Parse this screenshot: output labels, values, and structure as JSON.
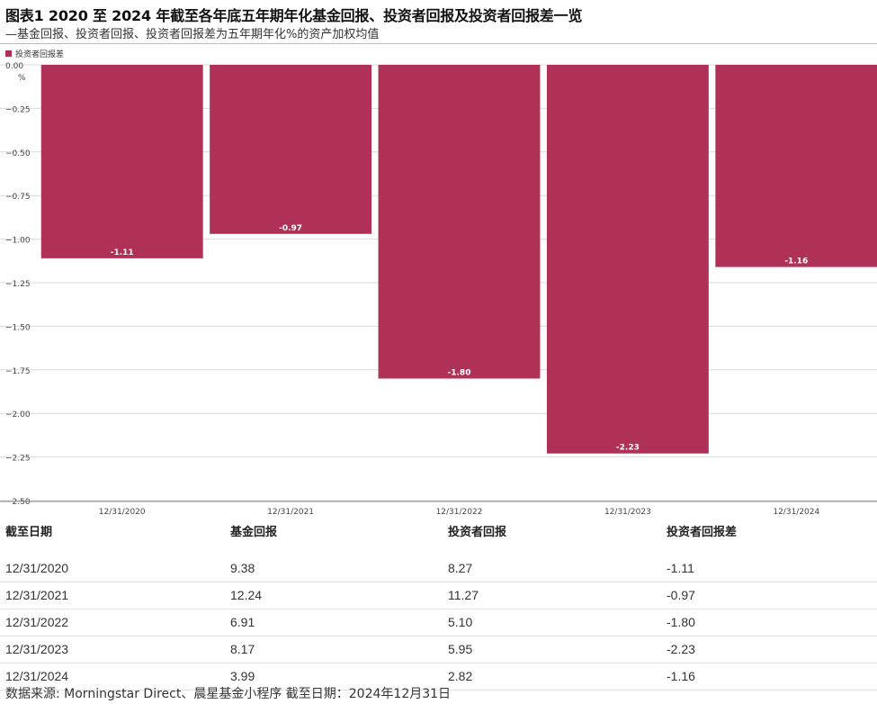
{
  "title": "图表1 2020 至 2024 年截至各年底五年期年化基金回报、投资者回报及投资者回报差一览",
  "subtitle": "—基金回报、投资者回报、投资者回报差为五年期年化%的资产加权均值",
  "legend": {
    "label": "投资者回报差",
    "color": "#b03156"
  },
  "colors": {
    "bar": "#b03156",
    "grid": "#d9d9d9",
    "axis": "#888888"
  },
  "chart_data": {
    "type": "bar",
    "categories": [
      "12/31/2020",
      "12/31/2021",
      "12/31/2022",
      "12/31/2023",
      "12/31/2024"
    ],
    "series": [
      {
        "name": "投资者回报差",
        "values": [
          -1.11,
          -0.97,
          -1.8,
          -2.23,
          -1.16
        ]
      }
    ],
    "data_labels": [
      "-1.11",
      "-0.97",
      "-1.80",
      "-2.23",
      "-1.16"
    ],
    "ylim": [
      -2.5,
      0
    ],
    "yticks": [
      0,
      -0.25,
      -0.5,
      -0.75,
      -1.0,
      -1.25,
      -1.5,
      -1.75,
      -2.0,
      -2.25,
      -2.5
    ],
    "ytick_labels": [
      "0.00",
      "−0.25",
      "−0.50",
      "−0.75",
      "−1.00",
      "−1.25",
      "−1.50",
      "−1.75",
      "−2.00",
      "−2.25",
      "−2.50"
    ],
    "y_unit": "%",
    "grid": true
  },
  "table": {
    "headers": [
      "截至日期",
      "基金回报",
      "投资者回报",
      "投资者回报差"
    ],
    "rows": [
      [
        "12/31/2020",
        "9.38",
        "8.27",
        "-1.11"
      ],
      [
        "12/31/2021",
        "12.24",
        "11.27",
        "-0.97"
      ],
      [
        "12/31/2022",
        "6.91",
        "5.10",
        "-1.80"
      ],
      [
        "12/31/2023",
        "8.17",
        "5.95",
        "-2.23"
      ],
      [
        "12/31/2024",
        "3.99",
        "2.82",
        "-1.16"
      ]
    ]
  },
  "source": "数据来源: Morningstar Direct、晨星基金小程序 截至日期：2024年12月31日"
}
